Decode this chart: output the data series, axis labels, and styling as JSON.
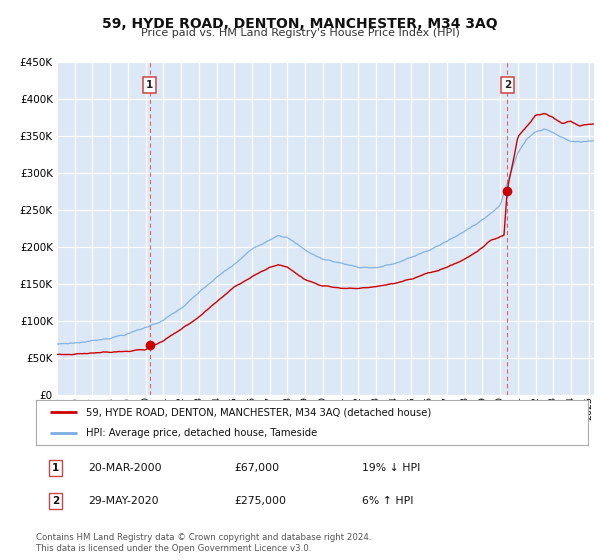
{
  "title": "59, HYDE ROAD, DENTON, MANCHESTER, M34 3AQ",
  "subtitle": "Price paid vs. HM Land Registry's House Price Index (HPI)",
  "background_color": "#ffffff",
  "plot_bg_color": "#dce8f5",
  "grid_color": "#ffffff",
  "ylim": [
    0,
    450000
  ],
  "xlim_start": 1995.0,
  "xlim_end": 2025.3,
  "sale1_date": 2000.22,
  "sale1_price": 67000,
  "sale2_date": 2020.41,
  "sale2_price": 275000,
  "legend_line1": "59, HYDE ROAD, DENTON, MANCHESTER, M34 3AQ (detached house)",
  "legend_line2": "HPI: Average price, detached house, Tameside",
  "note1_date": "20-MAR-2000",
  "note1_price": "£67,000",
  "note1_hpi": "19% ↓ HPI",
  "note2_date": "29-MAY-2020",
  "note2_price": "£275,000",
  "note2_hpi": "6% ↑ HPI",
  "footer": "Contains HM Land Registry data © Crown copyright and database right 2024.\nThis data is licensed under the Open Government Licence v3.0.",
  "red_line_color": "#cc0000",
  "blue_line_color": "#7aacde",
  "marker_color": "#cc0000",
  "vline_color": "#dd4444"
}
